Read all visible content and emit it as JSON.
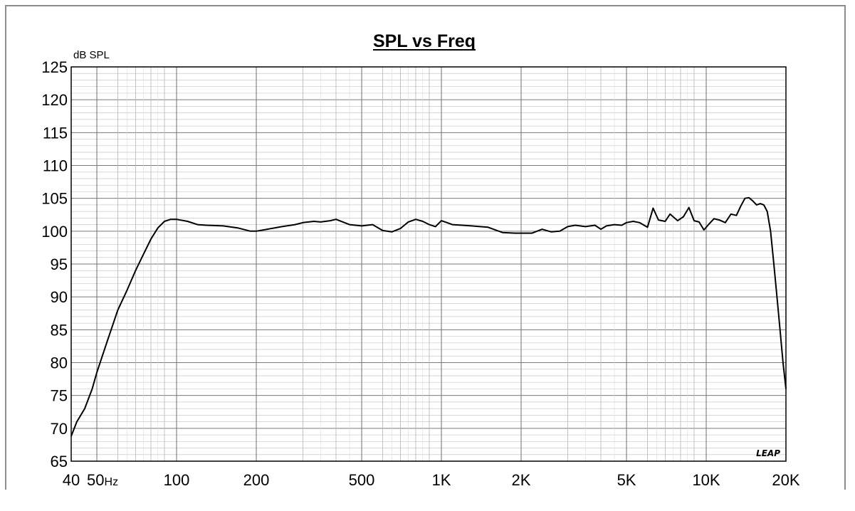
{
  "chart_data": {
    "type": "line",
    "title": "SPL vs Freq",
    "ylabel": "dB SPL",
    "xlabel": "",
    "x_scale": "log",
    "xlim": [
      40,
      20000
    ],
    "ylim": [
      65,
      125
    ],
    "grid": true,
    "y_ticks": [
      "125",
      "120",
      "115",
      "110",
      "105",
      "100",
      "95",
      "90",
      "85",
      "80",
      "75",
      "70",
      "65"
    ],
    "x_ticks": [
      {
        "label": "40",
        "value": 40
      },
      {
        "label": "50",
        "value": 50,
        "suffix": "Hz"
      },
      {
        "label": "100",
        "value": 100
      },
      {
        "label": "200",
        "value": 200
      },
      {
        "label": "500",
        "value": 500
      },
      {
        "label": "1K",
        "value": 1000
      },
      {
        "label": "2K",
        "value": 2000
      },
      {
        "label": "5K",
        "value": 5000
      },
      {
        "label": "10K",
        "value": 10000
      },
      {
        "label": "20K",
        "value": 20000
      }
    ],
    "brand_label": "LEAP",
    "series": [
      {
        "x": [
          40,
          42,
          45,
          48,
          50,
          55,
          60,
          65,
          70,
          75,
          80,
          85,
          90,
          95,
          100,
          110,
          120,
          130,
          150,
          170,
          190,
          200,
          220,
          250,
          280,
          300,
          330,
          350,
          380,
          400,
          450,
          500,
          550,
          600,
          650,
          700,
          750,
          800,
          850,
          900,
          950,
          1000,
          1050,
          1100,
          1200,
          1300,
          1400,
          1500,
          1700,
          1900,
          2000,
          2200,
          2400,
          2600,
          2800,
          3000,
          3200,
          3500,
          3800,
          4000,
          4200,
          4500,
          4800,
          5000,
          5300,
          5600,
          6000,
          6300,
          6600,
          7000,
          7300,
          7800,
          8200,
          8600,
          9000,
          9400,
          9800,
          10200,
          10700,
          11200,
          11800,
          12400,
          13000,
          13500,
          14000,
          14500,
          15000,
          15500,
          16000,
          16500,
          17000,
          17500,
          18000,
          18500,
          19000,
          19500,
          20000
        ],
        "y": [
          68.8,
          71.0,
          73.0,
          76.0,
          78.5,
          83.5,
          88.0,
          91.0,
          94.0,
          96.5,
          98.8,
          100.5,
          101.5,
          101.8,
          101.8,
          101.5,
          101.0,
          100.9,
          100.8,
          100.5,
          100.0,
          100.0,
          100.3,
          100.7,
          101.0,
          101.3,
          101.5,
          101.4,
          101.6,
          101.8,
          101.0,
          100.8,
          101.0,
          100.1,
          99.9,
          100.4,
          101.4,
          101.8,
          101.5,
          101.0,
          100.7,
          101.6,
          101.3,
          101.0,
          100.9,
          100.8,
          100.7,
          100.6,
          99.8,
          99.7,
          99.7,
          99.7,
          100.3,
          99.9,
          100.0,
          100.7,
          100.9,
          100.7,
          100.9,
          100.3,
          100.8,
          101.0,
          100.9,
          101.3,
          101.5,
          101.3,
          100.6,
          103.5,
          101.7,
          101.5,
          102.6,
          101.6,
          102.2,
          103.6,
          101.6,
          101.4,
          100.2,
          101.0,
          101.9,
          101.7,
          101.3,
          102.6,
          102.4,
          103.8,
          105.0,
          105.1,
          104.6,
          104.0,
          104.2,
          104.0,
          103.0,
          100.0,
          95.0,
          90.0,
          85.0,
          80.0,
          76.0
        ]
      }
    ]
  }
}
